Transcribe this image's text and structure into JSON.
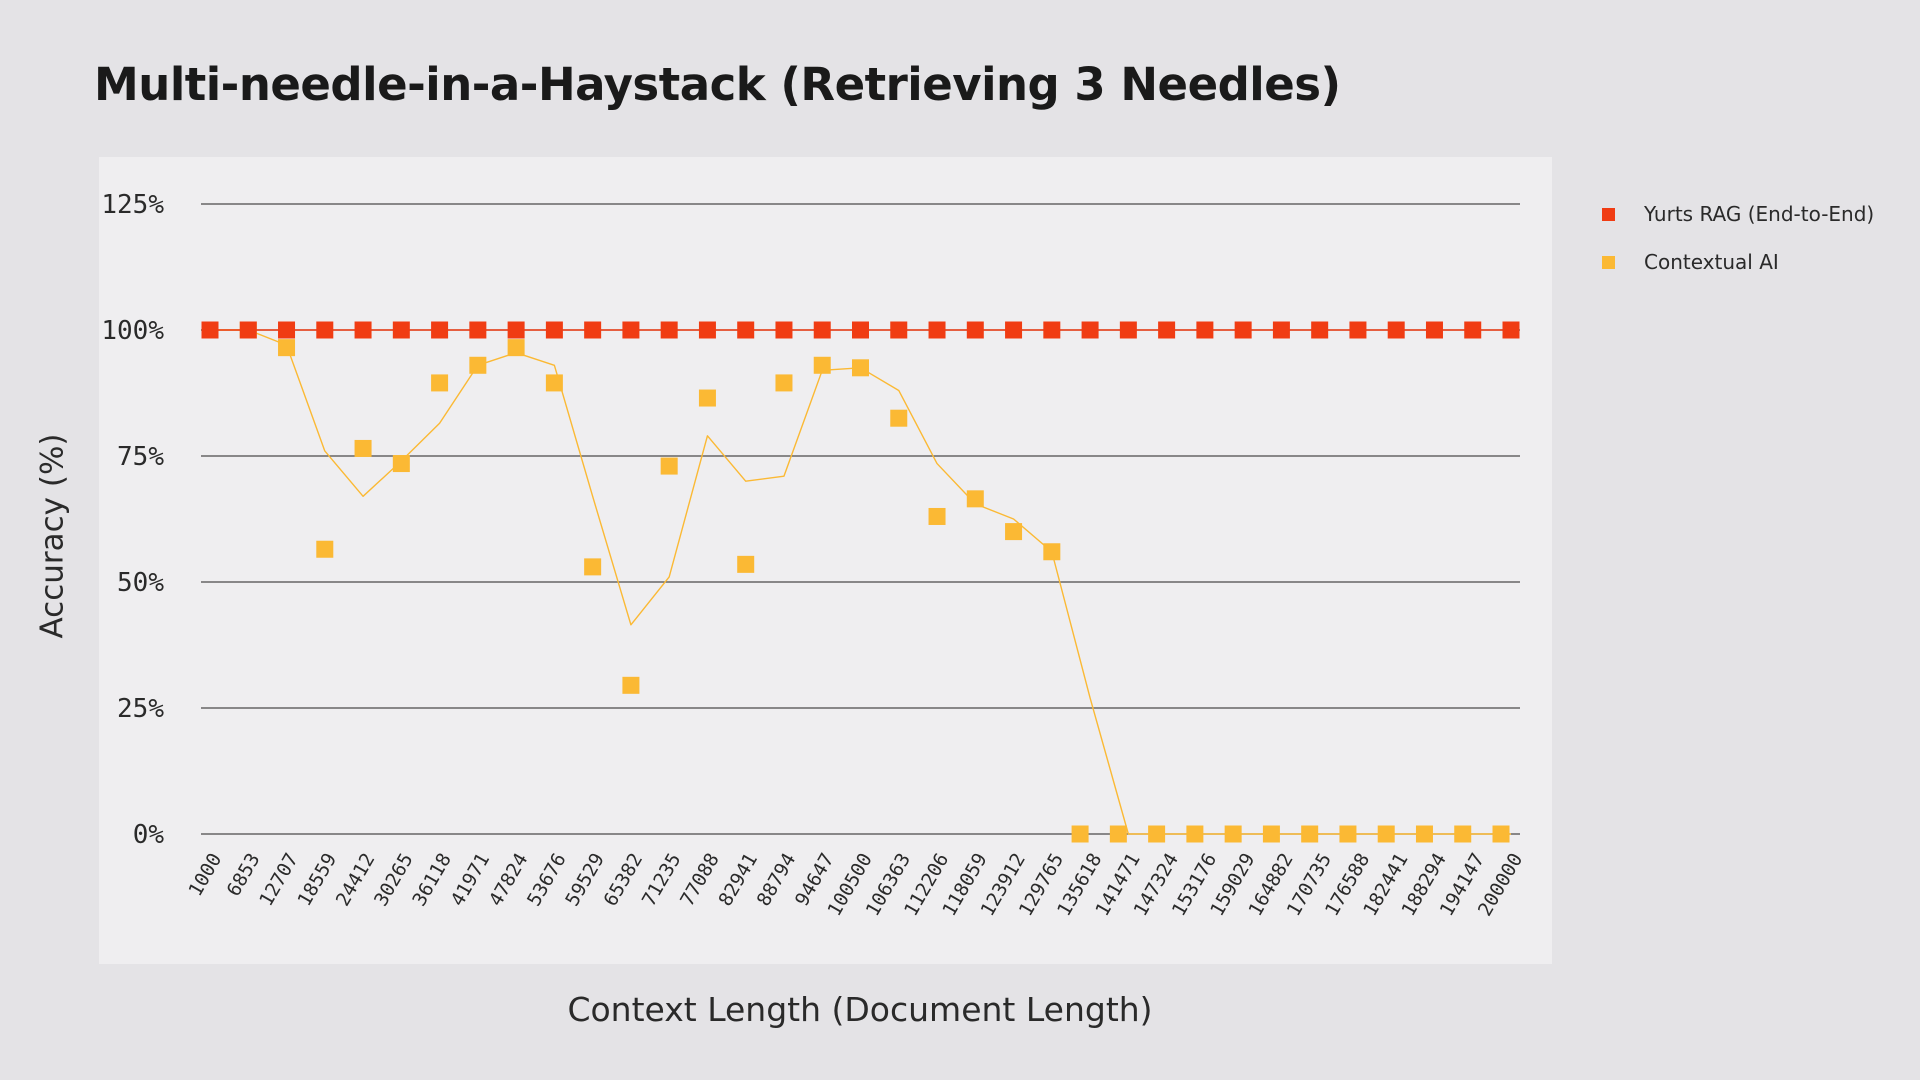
{
  "title": "Multi-needle-in-a-Haystack (Retrieving 3 Needles)",
  "chart_data": {
    "type": "scatter",
    "title": "Multi-needle-in-a-Haystack (Retrieving 3 Needles)",
    "xlabel": "Context Length (Document Length)",
    "ylabel": "Accuracy (%)",
    "ylim": [
      0,
      125
    ],
    "yticks": [
      0,
      25,
      50,
      75,
      100,
      125
    ],
    "ytick_labels": [
      "0%",
      "25%",
      "50%",
      "75%",
      "100%",
      "125%"
    ],
    "grid": "horizontal",
    "legend_position": "right",
    "categories": [
      "1000",
      "6853",
      "12707",
      "18559",
      "24412",
      "30265",
      "36118",
      "41971",
      "47824",
      "53676",
      "59529",
      "65382",
      "71235",
      "77088",
      "82941",
      "88794",
      "94647",
      "100500",
      "106363",
      "112206",
      "118059",
      "123912",
      "129765",
      "135618",
      "141471",
      "147324",
      "153176",
      "159029",
      "164882",
      "170735",
      "176588",
      "182441",
      "188294",
      "194147",
      "200000"
    ],
    "series": [
      {
        "name": "Yurts RAG (End-to-End)",
        "color": "#f03c13",
        "values": [
          100,
          100,
          100,
          100,
          100,
          100,
          100,
          100,
          100,
          100,
          100,
          100,
          100,
          100,
          100,
          100,
          100,
          100,
          100,
          100,
          100,
          100,
          100,
          100,
          100,
          100,
          100,
          100,
          100,
          100,
          100,
          100,
          100,
          100,
          100
        ],
        "trendline": [
          100,
          100,
          100,
          100,
          100,
          100,
          100,
          100,
          100,
          100,
          100,
          100,
          100,
          100,
          100,
          100,
          100,
          100,
          100,
          100,
          100,
          100,
          100,
          100,
          100,
          100,
          100,
          100,
          100,
          100,
          100,
          100,
          100,
          100,
          100
        ]
      },
      {
        "name": "Contextual AI",
        "color": "#fbb934",
        "values": [
          100,
          100,
          96.5,
          56.5,
          76.5,
          73.5,
          89.5,
          93,
          96.5,
          89.5,
          53,
          29.5,
          73,
          86.5,
          53.5,
          89.5,
          93,
          92.5,
          82.5,
          63,
          66.5,
          60,
          56,
          0,
          0,
          0,
          0,
          0,
          0,
          0,
          0,
          0,
          0,
          0,
          0
        ],
        "trendline": [
          100,
          100,
          97,
          76,
          67,
          74,
          81.5,
          93,
          95.5,
          93,
          67,
          41.5,
          51,
          79,
          70,
          71,
          92,
          92.5,
          88,
          73.5,
          65.5,
          62.5,
          56,
          27,
          0,
          0,
          0,
          0,
          0,
          0,
          0,
          0,
          0,
          0,
          0
        ]
      }
    ]
  }
}
